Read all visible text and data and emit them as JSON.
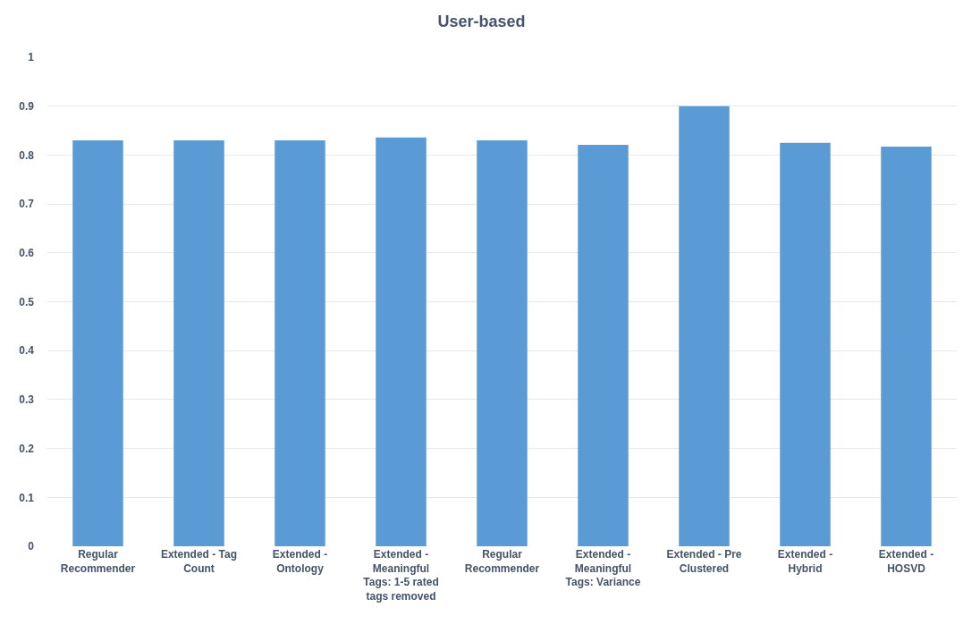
{
  "chart_data": {
    "type": "bar",
    "title": "User-based",
    "categories": [
      "Regular Recommender",
      "Extended - Tag Count",
      "Extended - Ontology",
      "Extended - Meaningful Tags: 1-5 rated tags removed",
      "Regular Recommender",
      "Extended - Meaningful Tags: Variance",
      "Extended - Pre Clustered",
      "Extended - Hybrid",
      "Extended - HOSVD"
    ],
    "values": [
      0.83,
      0.83,
      0.83,
      0.836,
      0.83,
      0.821,
      0.9,
      0.825,
      0.817
    ],
    "color": "#5b9bd5",
    "ylim": [
      0,
      1
    ],
    "yticks": [
      0,
      0.1,
      0.2,
      0.3,
      0.4,
      0.5,
      0.6,
      0.7,
      0.8,
      0.9,
      1
    ],
    "grid": "y"
  }
}
